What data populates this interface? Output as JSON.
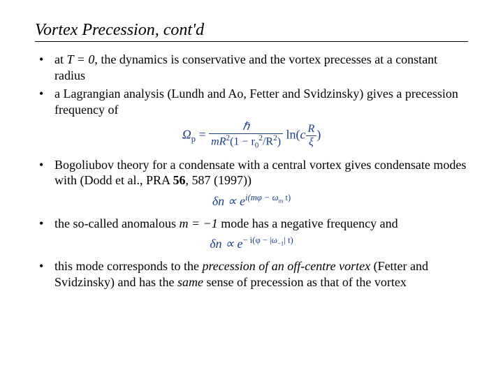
{
  "title": "Vortex Precession, cont'd",
  "bullets": {
    "b1_pre": "at ",
    "b1_var": "T = 0",
    "b1_post": ", the dynamics is conservative and the vortex precesses at a constant radius",
    "b2": "a Lagrangian analysis (Lundh and Ao, Fetter and Svidzinsky) gives a precession frequency of",
    "b3_pre": "Bogoliubov theory for a condensate with a central vortex gives condensate modes with (Dodd et al., PRA ",
    "b3_vol": "56",
    "b3_post": ", 587 (1997))",
    "b4_pre": "the so-called anomalous ",
    "b4_mid": "m = −1",
    "b4_post": " mode has a negative frequency and",
    "b5_pre": "this mode corresponds to the ",
    "b5_em1": "precession of an off-centre vortex",
    "b5_mid": " (Fetter and Svidzinsky) and has the ",
    "b5_em2": "same",
    "b5_post": " sense of precession as that of the vortex"
  },
  "formulas": {
    "f1_lhs": "Ω",
    "f1_lhs_sub": "p",
    "f1_eq": " = ",
    "f1_num": "ℏ",
    "f1_den_a": "mR",
    "f1_den_b": "(1 − r",
    "f1_den_c": "/R",
    "f1_den_d": ")",
    "f1_ln": " ln",
    "f1_paren_l": "(",
    "f1_c": "c",
    "f1_innernum": "R",
    "f1_innerden": "ξ",
    "f1_paren_r": ")",
    "f2_lhs": "δn ∝ e",
    "f2_exp": "i(mφ − ω",
    "f2_exp_sub": "m",
    "f2_exp_tail": " t)",
    "f3_lhs": "δn ∝ e",
    "f3_exp": "− i(φ − |ω",
    "f3_exp_sub": "−1",
    "f3_exp_tail": "| t)"
  },
  "style": {
    "formula_color": "#1a3e8a",
    "text_color": "#000000",
    "background": "#ffffff",
    "title_fontsize": 24,
    "body_fontsize": 18
  }
}
